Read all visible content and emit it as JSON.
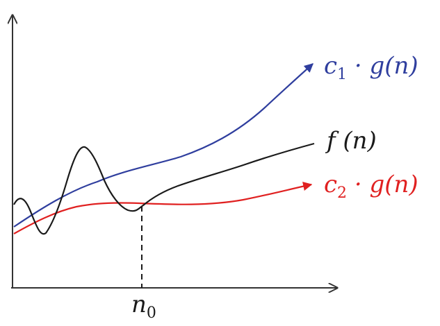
{
  "labels": {
    "c1g": {
      "coef": "c",
      "sub": "1",
      "rest": " · g(n)"
    },
    "f": {
      "text": "f (n)"
    },
    "c2g": {
      "coef": "c",
      "sub": "2",
      "rest": " · g(n)"
    },
    "n0": {
      "base": "n",
      "sub": "0"
    }
  },
  "colors": {
    "upper_bound": "#2f3e9e",
    "function": "#1a1a1a",
    "lower_bound": "#e02020",
    "axes": "#333333"
  }
}
